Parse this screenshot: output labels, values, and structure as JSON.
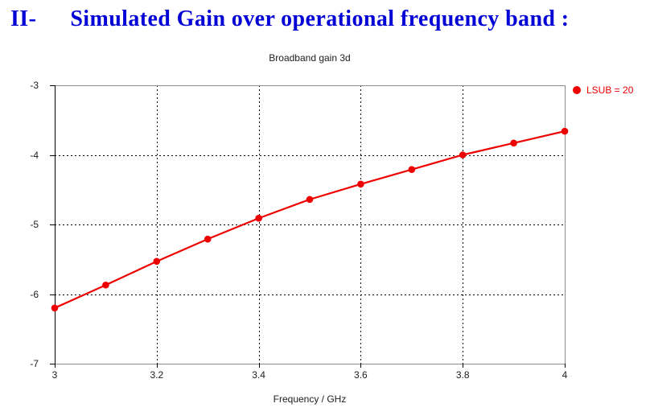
{
  "page": {
    "heading": {
      "numeral": "II-",
      "text": "Simulated Gain over operational frequency band :"
    },
    "colors": {
      "heading_blue": "#0202d6",
      "series_red": "#ee0000",
      "plot_border_gray": "#8c8c8c",
      "axis_black": "#000000"
    }
  },
  "chart_data": {
    "type": "line",
    "title": "Broadband gain 3d",
    "xlabel": "Frequency / GHz",
    "ylabel": "",
    "legend_label": "LSUB = 20",
    "legend_position": "outside-top-right",
    "marker": "circle",
    "grid": true,
    "grid_style": "dashed",
    "xlim": [
      3,
      4
    ],
    "ylim": [
      -7,
      -3
    ],
    "xticks": [
      3,
      3.2,
      3.4,
      3.6,
      3.8,
      4
    ],
    "xtick_labels": [
      "3",
      "3.2",
      "3.4",
      "3.6",
      "3.8",
      "4"
    ],
    "yticks": [
      -3,
      -4,
      -5,
      -6,
      -7
    ],
    "ytick_labels": [
      "-3",
      "-4",
      "-5",
      "-6",
      "-7"
    ],
    "x": [
      3.0,
      3.1,
      3.2,
      3.3,
      3.4,
      3.5,
      3.6,
      3.7,
      3.8,
      3.9,
      4.0
    ],
    "series": [
      {
        "name": "LSUB = 20",
        "color": "#ee0000",
        "values": [
          -6.2,
          -5.87,
          -5.53,
          -5.21,
          -4.91,
          -4.64,
          -4.42,
          -4.21,
          -4.0,
          -3.83,
          -3.66
        ]
      }
    ]
  }
}
